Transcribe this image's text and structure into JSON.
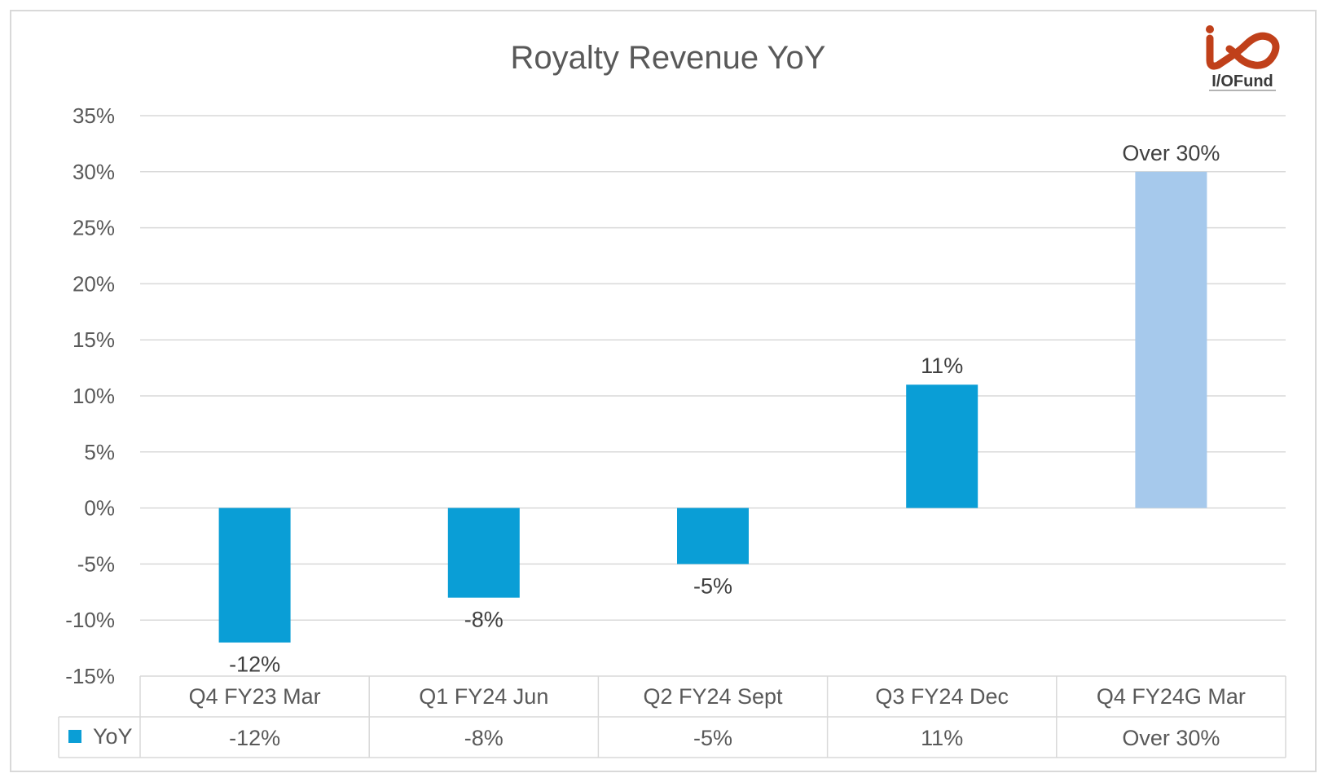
{
  "chart_data": {
    "type": "bar",
    "title": "Royalty Revenue YoY",
    "categories": [
      "Q4 FY23 Mar",
      "Q1 FY24 Jun",
      "Q2 FY24 Sept",
      "Q3 FY24 Dec",
      "Q4 FY24G Mar"
    ],
    "series": [
      {
        "name": "YoY",
        "values": [
          -12,
          -8,
          -5,
          11,
          30
        ],
        "data_labels": [
          "-12%",
          "-8%",
          "-5%",
          "11%",
          "Over 30%"
        ],
        "colors": [
          "#0a9ed6",
          "#0a9ed6",
          "#0a9ed6",
          "#0a9ed6",
          "#a6c9ec"
        ]
      }
    ],
    "y_ticks": [
      "35%",
      "30%",
      "25%",
      "20%",
      "15%",
      "10%",
      "5%",
      "0%",
      "-5%",
      "-10%",
      "-15%"
    ],
    "ylim": [
      -15,
      35
    ],
    "grid": true,
    "legend": "data-table",
    "xlabel": "",
    "ylabel": ""
  },
  "logo": {
    "text": "I/OFund",
    "color": "#c0401a"
  },
  "colors": {
    "bar": "#0a9ed6",
    "bar_projected": "#a6c9ec",
    "grid": "#d9d9d9",
    "text": "#595959"
  }
}
